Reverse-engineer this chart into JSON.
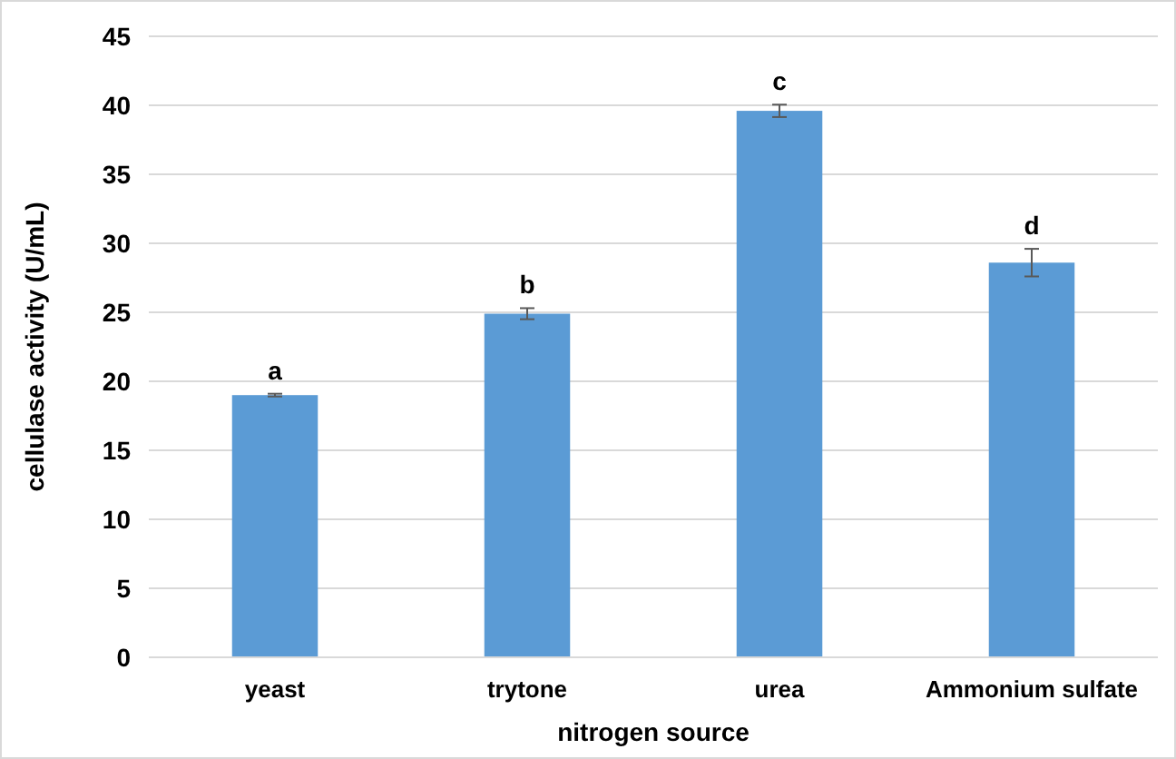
{
  "chart_data": {
    "type": "bar",
    "xlabel": "nitrogen source",
    "ylabel": "cellulase activity (U/mL)",
    "categories": [
      "yeast",
      "trytone",
      "urea",
      "Ammonium sulfate"
    ],
    "values": [
      19.0,
      24.9,
      39.6,
      28.6
    ],
    "errors": [
      0.1,
      0.4,
      0.45,
      1.0
    ],
    "color": "#5b9bd5",
    "ylim": [
      0,
      45
    ],
    "yticks": [
      0,
      5,
      10,
      15,
      20,
      25,
      30,
      35,
      40,
      45
    ],
    "grid": "y",
    "annotations": [
      {
        "text": "a",
        "x": "yeast",
        "y": 19.0
      },
      {
        "text": "b",
        "x": "trytone",
        "y": 24.9
      },
      {
        "text": "c",
        "x": "urea",
        "y": 39.6
      },
      {
        "text": "d",
        "x": "Ammonium sulfate",
        "y": 28.6
      }
    ]
  }
}
